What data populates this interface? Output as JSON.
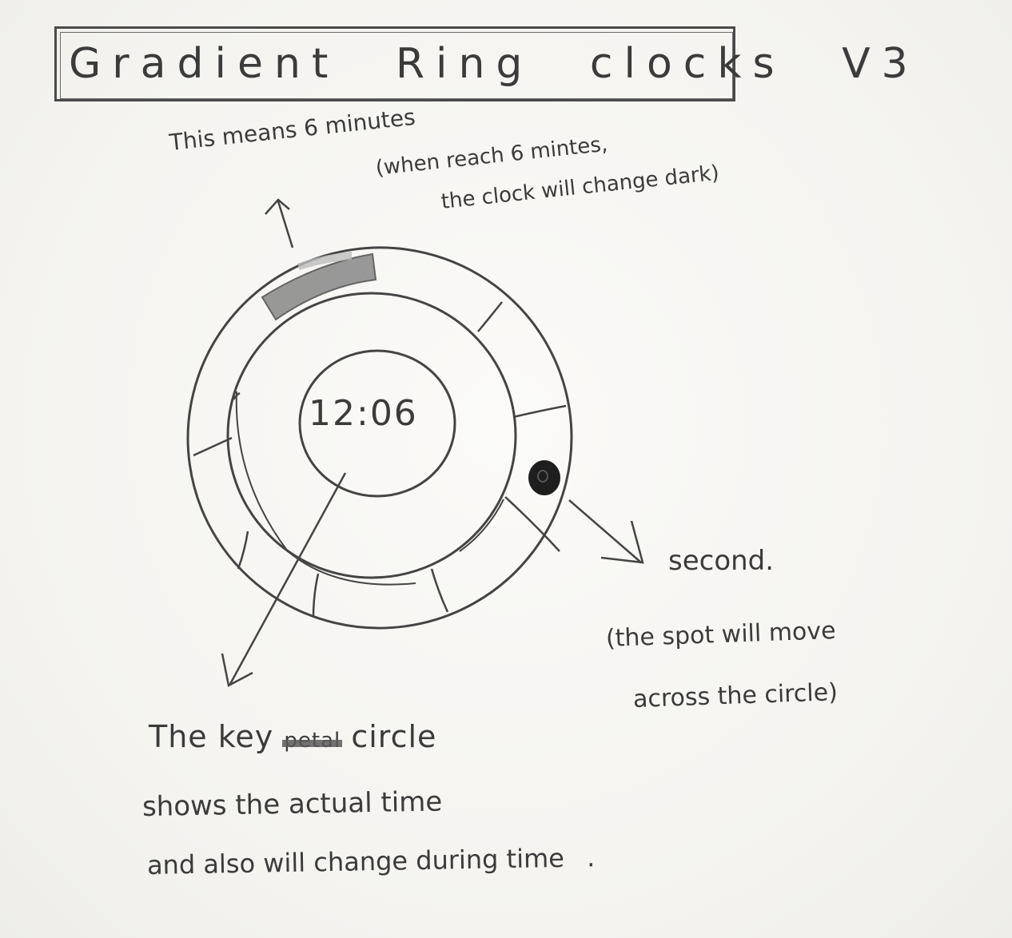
{
  "sketch": {
    "title": "Gradient Ring clocks V3",
    "clock_time": "12:06",
    "minutes_note": {
      "line1": "This means 6 minutes",
      "line2": "(when reach 6 mintes,",
      "line3": "the clock will change dark)"
    },
    "second_note": {
      "line1": "second.",
      "line2": "(the spot will move",
      "line3": "across the circle)"
    },
    "key_note": {
      "line1_prefix": "The key",
      "line1_struck": "petal",
      "line1_suffix": "circle",
      "line2": "shows the actual time",
      "line3": "and also will change during time",
      "line3_end": "."
    }
  }
}
